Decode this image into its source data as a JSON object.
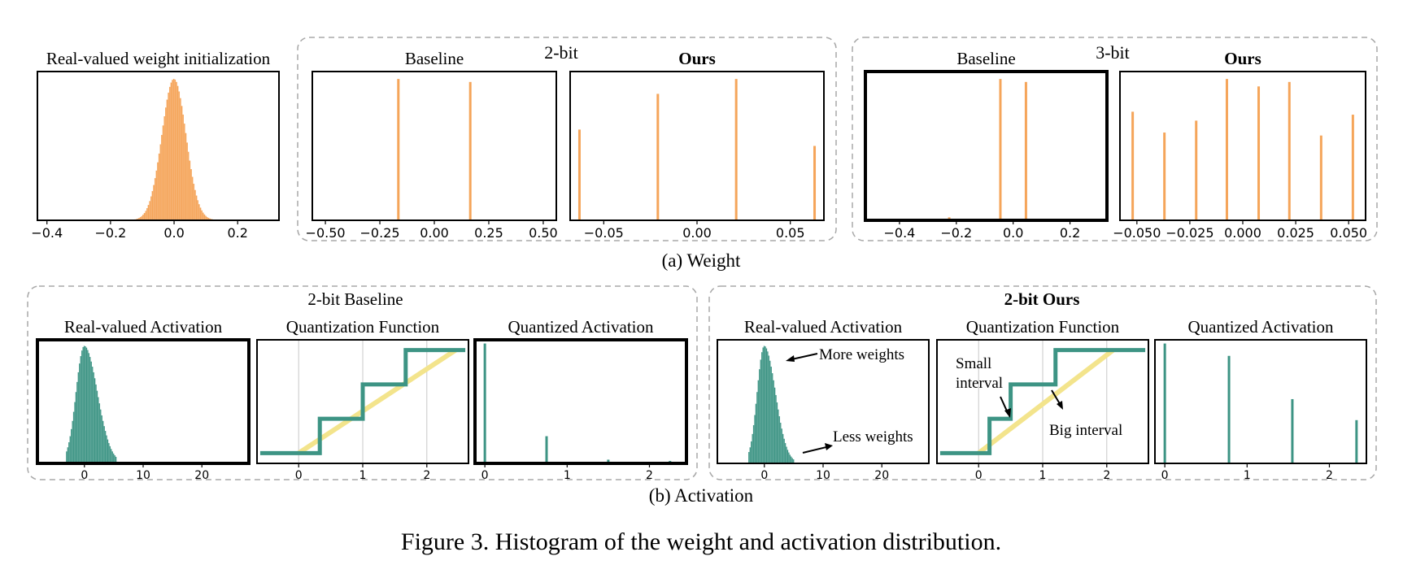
{
  "figure": {
    "caption": "Figure 3. Histogram of the weight and activation distribution.",
    "weight_label": "(a) Weight",
    "activation_label": "(b) Activation",
    "group_2bit_weight": "2-bit",
    "group_3bit_weight": "3-bit",
    "group_2bit_baseline_act": "2-bit Baseline",
    "group_2bit_ours_act": "2-bit Ours"
  },
  "colors": {
    "weight": "#f5a55a",
    "activation": "#3d9484",
    "quant_line": "#3d9484",
    "identity_line": "#f3e48c",
    "frame": "#000000",
    "group_border": "#a8a8a8"
  },
  "annotations": {
    "more_weights": "More weights",
    "less_weights": "Less weights",
    "small_interval_1": "Small",
    "small_interval_2": "interval",
    "big_interval": "Big interval"
  },
  "chart_data": [
    {
      "id": "w_real",
      "type": "bar",
      "title": "Real-valued weight initialization",
      "title_bold": false,
      "xlim": [
        -0.43,
        0.33
      ],
      "ylim": [
        0,
        1
      ],
      "xticks": [
        -0.4,
        -0.2,
        0.0,
        0.2
      ],
      "xtick_labels": [
        "−0.4",
        "−0.2",
        "0.0",
        "0.2"
      ],
      "distribution": {
        "mean": 0.0,
        "std": 0.038,
        "peak": 0.95,
        "from": -0.16,
        "to": 0.16,
        "step": 0.0042
      },
      "color": "weight"
    },
    {
      "id": "w2_base",
      "type": "bar",
      "title": "Baseline",
      "title_bold": false,
      "xlim": [
        -0.56,
        0.56
      ],
      "ylim": [
        0,
        1
      ],
      "xticks": [
        -0.5,
        -0.25,
        0.0,
        0.25,
        0.5
      ],
      "xtick_labels": [
        "−0.50",
        "−0.25",
        "0.00",
        "0.25",
        "0.50"
      ],
      "bars": [
        {
          "x": -0.165,
          "v": 0.95
        },
        {
          "x": 0.165,
          "v": 0.93
        }
      ],
      "color": "weight"
    },
    {
      "id": "w2_ours",
      "type": "bar",
      "title": "Ours",
      "title_bold": true,
      "xlim": [
        -0.068,
        0.068
      ],
      "ylim": [
        0,
        1
      ],
      "xticks": [
        -0.05,
        0.0,
        0.05
      ],
      "xtick_labels": [
        "−0.05",
        "0.00",
        "0.05"
      ],
      "bars": [
        {
          "x": -0.063,
          "v": 0.61
        },
        {
          "x": -0.021,
          "v": 0.85
        },
        {
          "x": 0.021,
          "v": 0.95
        },
        {
          "x": 0.063,
          "v": 0.5
        }
      ],
      "color": "weight"
    },
    {
      "id": "w3_base",
      "type": "bar",
      "title": "Baseline",
      "title_bold": false,
      "thick_frame": true,
      "xlim": [
        -0.52,
        0.33
      ],
      "ylim": [
        0,
        1
      ],
      "xticks": [
        -0.4,
        -0.2,
        0.0,
        0.2
      ],
      "xtick_labels": [
        "−0.4",
        "−0.2",
        "0.0",
        "0.2"
      ],
      "bars": [
        {
          "x": -0.045,
          "v": 0.95
        },
        {
          "x": 0.045,
          "v": 0.93
        },
        {
          "x": -0.225,
          "v": 0.02
        }
      ],
      "color": "weight"
    },
    {
      "id": "w3_ours",
      "type": "bar",
      "title": "Ours",
      "title_bold": true,
      "xlim": [
        -0.058,
        0.058
      ],
      "ylim": [
        0,
        1
      ],
      "xticks": [
        -0.05,
        -0.025,
        0.0,
        0.025,
        0.05
      ],
      "xtick_labels": [
        "−0.050",
        "−0.025",
        "0.000",
        "0.025",
        "0.050"
      ],
      "bars": [
        {
          "x": -0.052,
          "v": 0.73
        },
        {
          "x": -0.037,
          "v": 0.59
        },
        {
          "x": -0.022,
          "v": 0.67
        },
        {
          "x": -0.0075,
          "v": 0.95
        },
        {
          "x": 0.0075,
          "v": 0.9
        },
        {
          "x": 0.022,
          "v": 0.93
        },
        {
          "x": 0.037,
          "v": 0.57
        },
        {
          "x": 0.052,
          "v": 0.71
        }
      ],
      "color": "weight"
    },
    {
      "id": "a_base_real",
      "type": "bar",
      "title": "Real-valued Activation",
      "title_bold": false,
      "thick_frame": true,
      "xlim": [
        -8,
        28
      ],
      "ylim": [
        0,
        1
      ],
      "xticks": [
        0,
        10,
        20
      ],
      "xtick_labels": [
        "0",
        "10",
        "20"
      ],
      "distribution": {
        "mean": 0.0,
        "std": 1.4,
        "peak": 0.95,
        "skew_right": 0.6,
        "from": -3.0,
        "to": 5.5,
        "step": 0.2
      },
      "color": "activation"
    },
    {
      "id": "a_base_qf",
      "type": "line",
      "title": "Quantization Function",
      "title_bold": false,
      "xlim": [
        -0.65,
        2.65
      ],
      "ylim": [
        -0.3,
        3.3
      ],
      "xticks": [
        0,
        1,
        2
      ],
      "xtick_labels": [
        "0",
        "1",
        "2"
      ],
      "grid_x": true,
      "identity": [
        [
          0,
          0
        ],
        [
          2.45,
          3.0
        ]
      ],
      "steps": [
        [
          -0.6,
          0
        ],
        [
          0.33,
          0
        ],
        [
          0.33,
          1
        ],
        [
          1.0,
          1
        ],
        [
          1.0,
          2
        ],
        [
          1.67,
          2
        ],
        [
          1.67,
          3
        ],
        [
          2.6,
          3
        ]
      ]
    },
    {
      "id": "a_base_q",
      "type": "bar",
      "title": "Quantized Activation",
      "title_bold": false,
      "thick_frame": true,
      "xlim": [
        -0.12,
        2.45
      ],
      "ylim": [
        0,
        1
      ],
      "xticks": [
        0,
        1,
        2
      ],
      "xtick_labels": [
        "0",
        "1",
        "2"
      ],
      "bars": [
        {
          "x": 0.0,
          "v": 0.97
        },
        {
          "x": 0.75,
          "v": 0.22
        },
        {
          "x": 1.5,
          "v": 0.03
        },
        {
          "x": 2.25,
          "v": 0.02
        }
      ],
      "color": "activation"
    },
    {
      "id": "a_ours_real",
      "type": "bar",
      "title": "Real-valued Activation",
      "title_bold": false,
      "xlim": [
        -8,
        28
      ],
      "ylim": [
        0,
        1
      ],
      "xticks": [
        0,
        10,
        20
      ],
      "xtick_labels": [
        "0",
        "10",
        "20"
      ],
      "distribution": {
        "mean": 0.0,
        "std": 1.2,
        "peak": 0.95,
        "skew_right": 0.6,
        "from": -2.6,
        "to": 5.0,
        "step": 0.2
      },
      "color": "activation"
    },
    {
      "id": "a_ours_qf",
      "type": "line",
      "title": "Quantization Function",
      "title_bold": false,
      "xlim": [
        -0.65,
        2.65
      ],
      "ylim": [
        -0.3,
        3.3
      ],
      "xticks": [
        0,
        1,
        2
      ],
      "xtick_labels": [
        "0",
        "1",
        "2"
      ],
      "grid_x": true,
      "identity": [
        [
          0,
          0
        ],
        [
          2.1,
          3.0
        ]
      ],
      "steps": [
        [
          -0.6,
          0
        ],
        [
          0.17,
          0
        ],
        [
          0.17,
          1
        ],
        [
          0.5,
          1
        ],
        [
          0.5,
          2
        ],
        [
          1.2,
          2
        ],
        [
          1.2,
          3
        ],
        [
          2.6,
          3
        ]
      ]
    },
    {
      "id": "a_ours_q",
      "type": "bar",
      "title": "Quantized Activation",
      "title_bold": false,
      "xlim": [
        -0.12,
        2.45
      ],
      "ylim": [
        0,
        1
      ],
      "xticks": [
        0,
        1,
        2
      ],
      "xtick_labels": [
        "0",
        "1",
        "2"
      ],
      "bars": [
        {
          "x": 0.0,
          "v": 0.97
        },
        {
          "x": 0.78,
          "v": 0.87
        },
        {
          "x": 1.55,
          "v": 0.52
        },
        {
          "x": 2.33,
          "v": 0.35
        }
      ],
      "color": "activation"
    }
  ]
}
